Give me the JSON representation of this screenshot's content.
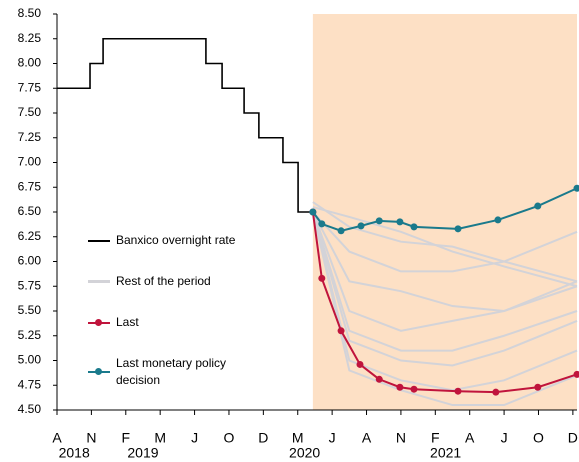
{
  "chart_data": {
    "type": "line",
    "xlim": [
      0,
      15.12
    ],
    "xticks": [
      {
        "value": 0,
        "label": "A"
      },
      {
        "value": 1,
        "label": "N"
      },
      {
        "value": 2,
        "label": "F"
      },
      {
        "value": 3,
        "label": "M"
      },
      {
        "value": 4,
        "label": "J"
      },
      {
        "value": 5,
        "label": "O"
      },
      {
        "value": 6,
        "label": "D"
      },
      {
        "value": 7,
        "label": "M"
      },
      {
        "value": 8,
        "label": "J"
      },
      {
        "value": 9,
        "label": "A"
      },
      {
        "value": 10,
        "label": "N"
      },
      {
        "value": 11,
        "label": "F"
      },
      {
        "value": 12,
        "label": "A"
      },
      {
        "value": 13,
        "label": "J"
      },
      {
        "value": 14,
        "label": "O"
      },
      {
        "value": 15,
        "label": "D"
      }
    ],
    "x_year_labels": [
      {
        "value": 0.5,
        "label": "2018"
      },
      {
        "value": 2.5,
        "label": "2019"
      },
      {
        "value": 7.2,
        "label": "2020"
      },
      {
        "value": 11.3,
        "label": "2021"
      }
    ],
    "ylim": [
      4.5,
      8.5
    ],
    "yticks": [
      {
        "value": 4.5,
        "label": "4.50"
      },
      {
        "value": 4.75,
        "label": "4.75"
      },
      {
        "value": 5,
        "label": "5.00"
      },
      {
        "value": 5.25,
        "label": "5.25"
      },
      {
        "value": 5.5,
        "label": "5.50"
      },
      {
        "value": 5.75,
        "label": "5.75"
      },
      {
        "value": 6,
        "label": "6.00"
      },
      {
        "value": 6.25,
        "label": "6.25"
      },
      {
        "value": 6.5,
        "label": "6.50"
      },
      {
        "value": 6.75,
        "label": "6.75"
      },
      {
        "value": 7,
        "label": "7.00"
      },
      {
        "value": 7.25,
        "label": "7.25"
      },
      {
        "value": 7.5,
        "label": "7.50"
      },
      {
        "value": 7.75,
        "label": "7.75"
      },
      {
        "value": 8,
        "label": "8.00"
      },
      {
        "value": 8.25,
        "label": "8.25"
      },
      {
        "value": 8.5,
        "label": "8.50"
      }
    ],
    "grid": false,
    "shaded_region": {
      "x": [
        7.44,
        15.12
      ],
      "color": "#fde0c5"
    },
    "series": [
      {
        "name": "Banxico overnight rate",
        "color": "#000000",
        "style": "step",
        "x": [
          0,
          0.96,
          1.34,
          4.33,
          4.8,
          5.44,
          5.87,
          6.57,
          7.01,
          7.44
        ],
        "values": [
          7.75,
          8.0,
          8.25,
          8.0,
          7.75,
          7.5,
          7.25,
          7.0,
          6.5,
          6.5
        ]
      },
      {
        "name": "Rest of the period",
        "color": "#d3d3d8",
        "style": "multi",
        "x": [
          7.44,
          8.5,
          10,
          11.5,
          13,
          15.12
        ],
        "values": [
          [
            6.55,
            6.45,
            6.3,
            6.1,
            5.95,
            5.75
          ],
          [
            6.6,
            6.35,
            6.2,
            6.15,
            6.0,
            5.8
          ],
          [
            6.5,
            6.1,
            5.9,
            5.9,
            6.0,
            6.3
          ],
          [
            6.5,
            5.8,
            5.7,
            5.55,
            5.5,
            5.75
          ],
          [
            6.5,
            5.5,
            5.3,
            5.4,
            5.5,
            5.8
          ],
          [
            6.5,
            5.3,
            5.1,
            5.1,
            5.25,
            5.5
          ],
          [
            6.5,
            5.2,
            5.0,
            4.95,
            5.1,
            5.4
          ],
          [
            6.5,
            5.0,
            4.8,
            4.7,
            4.8,
            5.1
          ],
          [
            6.5,
            4.9,
            4.7,
            4.55,
            4.55,
            4.85
          ]
        ]
      },
      {
        "name": "Last",
        "color": "#c0143c",
        "style": "markers",
        "x": [
          7.44,
          7.7,
          8.26,
          8.81,
          9.37,
          9.97,
          10.38,
          11.66,
          12.76,
          13.98,
          15.12
        ],
        "values": [
          6.5,
          5.83,
          5.3,
          4.96,
          4.81,
          4.73,
          4.71,
          4.69,
          4.68,
          4.73,
          4.86
        ]
      },
      {
        "name": "Last monetary policy decision",
        "color": "#1a7a8c",
        "style": "markers",
        "x": [
          7.44,
          7.7,
          8.26,
          8.84,
          9.37,
          9.97,
          10.38,
          11.66,
          12.82,
          13.98,
          15.12
        ],
        "values": [
          6.5,
          6.38,
          6.31,
          6.36,
          6.41,
          6.4,
          6.35,
          6.33,
          6.42,
          6.56,
          6.74
        ]
      }
    ]
  }
}
